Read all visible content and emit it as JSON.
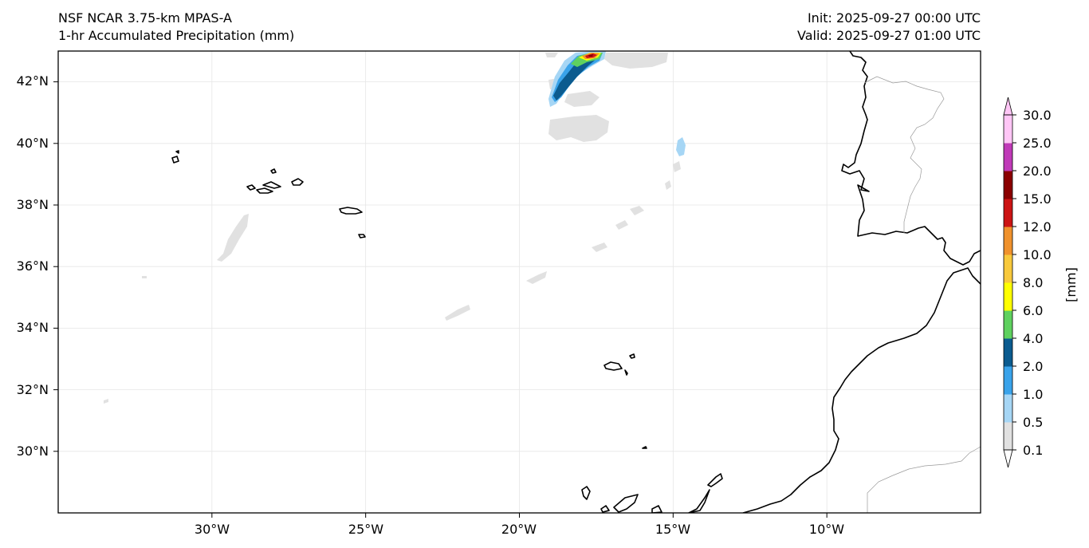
{
  "header": {
    "model": "NSF NCAR 3.75-km MPAS-A",
    "field": "1-hr Accumulated Precipitation (mm)",
    "init": "Init: 2025-09-27 00:00 UTC",
    "valid": "Valid: 2025-09-27 01:00 UTC"
  },
  "map": {
    "projection": "plate-carree",
    "lon_range": [
      -35,
      -5
    ],
    "lat_range": [
      28,
      43
    ],
    "lat_ticks": [
      "42°N",
      "40°N",
      "38°N",
      "36°N",
      "34°N",
      "32°N",
      "30°N"
    ],
    "lon_ticks": [
      "30°W",
      "25°W",
      "20°W",
      "15°W",
      "10°W"
    ],
    "grid": true,
    "regions": [
      "Azores",
      "Madeira",
      "Canary Islands",
      "Portugal",
      "Morocco"
    ]
  },
  "colorbar": {
    "unit_label": "[mm]",
    "levels": [
      "0.1",
      "0.5",
      "1.0",
      "2.0",
      "4.0",
      "6.0",
      "8.0",
      "10.0",
      "12.0",
      "15.0",
      "20.0",
      "25.0",
      "30.0"
    ],
    "colors": [
      "#e1e1e1",
      "#a6d6f5",
      "#3aa3ea",
      "#0b5b8f",
      "#5fd15f",
      "#ffff00",
      "#f8c93c",
      "#f0922d",
      "#cc1414",
      "#8b0000",
      "#c03ab8",
      "#ffc6f6"
    ],
    "extend": "both"
  }
}
